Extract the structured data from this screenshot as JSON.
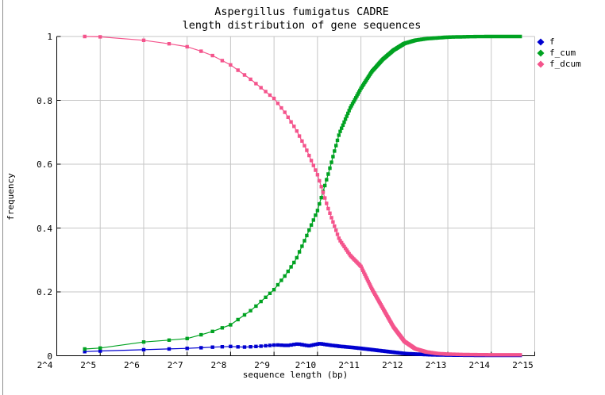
{
  "title": {
    "line1": "Aspergillus fumigatus CADRE",
    "line2": "length distribution of gene sequences"
  },
  "axes": {
    "x": {
      "label": "sequence length (bp)",
      "scale": "log2",
      "tick_labels": [
        "2^4",
        "2^5",
        "2^6",
        "2^7",
        "2^8",
        "2^9",
        "2^10",
        "2^11",
        "2^12",
        "2^13",
        "2^14",
        "2^15"
      ]
    },
    "y": {
      "label": "frequency",
      "tick_labels": [
        "0",
        "0.2",
        "0.4",
        "0.6",
        "0.8",
        "1"
      ],
      "min": 0,
      "max": 1
    }
  },
  "legend": {
    "position": "top-right-outside",
    "items": [
      {
        "label": "f",
        "color": "#0000d0"
      },
      {
        "label": "f_cum",
        "color": "#00a221"
      },
      {
        "label": "f_dcum",
        "color": "#f4548c"
      }
    ]
  },
  "colors": {
    "grid": "#c6c6c6",
    "axis": "#000000",
    "background": "#ffffff"
  },
  "chart_data": {
    "type": "line",
    "title": "Aspergillus fumigatus CADRE — length distribution of gene sequences",
    "xlabel": "sequence length (bp)",
    "ylabel": "frequency",
    "x_scale": "log2",
    "xlim": [
      "2^4",
      "2^15"
    ],
    "ylim": [
      0,
      1
    ],
    "grid": true,
    "legend_position": "top-right-outside",
    "marker": "filled-square",
    "series": [
      {
        "name": "f",
        "color": "#0000d0",
        "points_log2x": [
          [
            4.64,
            0.013
          ],
          [
            5,
            0.015
          ],
          [
            5.5,
            0.017
          ],
          [
            6,
            0.019
          ],
          [
            6.5,
            0.021
          ],
          [
            7,
            0.023
          ],
          [
            7.6,
            0.027
          ],
          [
            8,
            0.029
          ],
          [
            8.3,
            0.027
          ],
          [
            8.7,
            0.03
          ],
          [
            9.06,
            0.034
          ],
          [
            9.3,
            0.032
          ],
          [
            9.55,
            0.037
          ],
          [
            9.8,
            0.031
          ],
          [
            10.05,
            0.038
          ],
          [
            10.3,
            0.033
          ],
          [
            10.55,
            0.029
          ],
          [
            10.8,
            0.026
          ],
          [
            11,
            0.023
          ],
          [
            11.25,
            0.019
          ],
          [
            11.5,
            0.015
          ],
          [
            11.75,
            0.011
          ],
          [
            12,
            0.007
          ],
          [
            12.3,
            0.005
          ],
          [
            12.6,
            0.003
          ],
          [
            13,
            0.002
          ],
          [
            13.5,
            0.0015
          ],
          [
            14,
            0.001
          ],
          [
            14.665,
            0.001
          ]
        ]
      },
      {
        "name": "f_cum",
        "color": "#00a221",
        "points_log2x": [
          [
            4.64,
            0.021
          ],
          [
            5,
            0.024
          ],
          [
            5.5,
            0.032
          ],
          [
            6,
            0.043
          ],
          [
            6.5,
            0.048
          ],
          [
            7,
            0.054
          ],
          [
            7.5,
            0.072
          ],
          [
            8,
            0.097
          ],
          [
            8.5,
            0.145
          ],
          [
            9,
            0.207
          ],
          [
            9.25,
            0.25
          ],
          [
            9.5,
            0.3
          ],
          [
            9.75,
            0.375
          ],
          [
            10,
            0.455
          ],
          [
            10.25,
            0.57
          ],
          [
            10.5,
            0.695
          ],
          [
            10.75,
            0.775
          ],
          [
            11,
            0.837
          ],
          [
            11.25,
            0.89
          ],
          [
            11.5,
            0.928
          ],
          [
            11.75,
            0.957
          ],
          [
            12,
            0.978
          ],
          [
            12.25,
            0.988
          ],
          [
            12.5,
            0.993
          ],
          [
            13,
            0.998
          ],
          [
            13.5,
            0.9995
          ],
          [
            14,
            1.0
          ],
          [
            14.665,
            1.0
          ]
        ]
      },
      {
        "name": "f_dcum",
        "color": "#f4548c",
        "points_log2x": [
          [
            4.64,
            1.0
          ],
          [
            5,
            0.999
          ],
          [
            5.5,
            0.995
          ],
          [
            6,
            0.988
          ],
          [
            6.5,
            0.979
          ],
          [
            7,
            0.968
          ],
          [
            7.5,
            0.946
          ],
          [
            8,
            0.911
          ],
          [
            8.5,
            0.862
          ],
          [
            9,
            0.806
          ],
          [
            9.25,
            0.762
          ],
          [
            9.5,
            0.71
          ],
          [
            9.75,
            0.645
          ],
          [
            10,
            0.567
          ],
          [
            10.25,
            0.46
          ],
          [
            10.5,
            0.365
          ],
          [
            10.75,
            0.315
          ],
          [
            11,
            0.28
          ],
          [
            11.25,
            0.21
          ],
          [
            11.5,
            0.15
          ],
          [
            11.75,
            0.09
          ],
          [
            12,
            0.045
          ],
          [
            12.25,
            0.022
          ],
          [
            12.5,
            0.012
          ],
          [
            12.75,
            0.007
          ],
          [
            13,
            0.005
          ],
          [
            13.5,
            0.0035
          ],
          [
            14,
            0.003
          ],
          [
            14.665,
            0.003
          ]
        ]
      }
    ]
  }
}
